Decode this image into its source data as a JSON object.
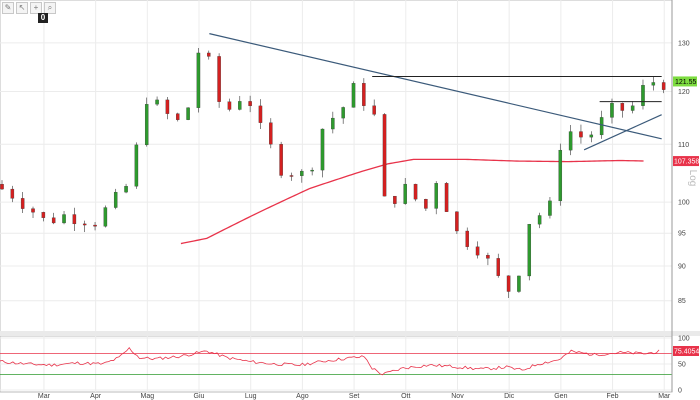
{
  "toolbar": {
    "icons": [
      "pencil-icon",
      "cursor-icon",
      "crosshair-icon",
      "zoom-icon"
    ],
    "badge": "0"
  },
  "chart_data": [
    {
      "type": "candlestick",
      "title": "",
      "scale": "log",
      "scale_label": "Log",
      "y_ticks": [
        85,
        90,
        95,
        100,
        110,
        120,
        130
      ],
      "ylim": [
        81,
        135
      ],
      "x_ticks": [
        "Mar",
        "Apr",
        "Mag",
        "Giu",
        "Lug",
        "Ago",
        "Set",
        "Ott",
        "Nov",
        "Dic",
        "Gen",
        "Feb",
        "Mar"
      ],
      "grid": true,
      "colors": {
        "up": "#2e9a2e",
        "down": "#d42020",
        "ma": "#e8334a",
        "trendline": "#3b5a7a",
        "resistance": "#222222",
        "price_tag": "#7ddc40",
        "ma_tag": "#e8334a"
      },
      "moving_average": {
        "value_label": "107.3580",
        "points": [
          [
            3.5,
            93.4
          ],
          [
            4,
            94.2
          ],
          [
            5,
            98.3
          ],
          [
            6,
            102.3
          ],
          [
            7,
            105.2
          ],
          [
            7.5,
            106.5
          ],
          [
            8,
            107.3
          ],
          [
            9,
            107.3
          ],
          [
            10,
            107.0
          ],
          [
            11,
            106.9
          ],
          [
            12,
            107.1
          ],
          [
            12.5,
            107.0
          ]
        ]
      },
      "price": {
        "last_label": "121.55",
        "keypoints": [
          [
            0,
            103
          ],
          [
            0.5,
            101
          ],
          [
            1,
            97
          ],
          [
            1.5,
            98
          ],
          [
            2,
            97
          ],
          [
            2.5,
            101
          ],
          [
            2.7,
            104
          ],
          [
            3,
            119
          ],
          [
            3.3,
            116
          ],
          [
            3.6,
            114
          ],
          [
            3.8,
            117
          ],
          [
            4.05,
            131
          ],
          [
            4.4,
            118
          ],
          [
            4.7,
            116
          ],
          [
            4.9,
            122
          ],
          [
            5.1,
            114
          ],
          [
            5.6,
            106
          ],
          [
            5.9,
            105
          ],
          [
            6.1,
            104
          ],
          [
            6.4,
            113
          ],
          [
            6.8,
            117
          ],
          [
            7.05,
            121
          ],
          [
            7.4,
            115
          ],
          [
            7.6,
            100
          ],
          [
            8,
            102
          ],
          [
            8.4,
            99
          ],
          [
            8.6,
            104
          ],
          [
            9,
            95
          ],
          [
            9.4,
            93
          ],
          [
            9.8,
            88
          ],
          [
            10.1,
            86
          ],
          [
            10.4,
            97
          ],
          [
            10.8,
            99
          ],
          [
            11.05,
            113
          ],
          [
            11.5,
            111
          ],
          [
            12,
            116
          ],
          [
            12.4,
            117
          ],
          [
            12.7,
            122
          ]
        ]
      },
      "trendlines": [
        {
          "from": [
            4.05,
            132
          ],
          "to": [
            12.8,
            111
          ]
        },
        {
          "from": [
            11.3,
            109
          ],
          "to": [
            12.8,
            115.5
          ]
        }
      ],
      "horizontal_lines": [
        {
          "y": 123,
          "from": 7.2,
          "to": 12.8
        },
        {
          "y": 118,
          "from": 11.6,
          "to": 12.8
        }
      ]
    },
    {
      "type": "line",
      "name_label": "",
      "y_ticks": [
        0,
        50,
        100
      ],
      "ylim": [
        0,
        100
      ],
      "levels": [
        70,
        30
      ],
      "value_label": "75.4054",
      "line_color": "#e8334a",
      "keypoints": [
        [
          0,
          55
        ],
        [
          0.5,
          50
        ],
        [
          1,
          48
        ],
        [
          1.5,
          52
        ],
        [
          2,
          50
        ],
        [
          2.3,
          62
        ],
        [
          2.5,
          80
        ],
        [
          2.7,
          62
        ],
        [
          3,
          60
        ],
        [
          3.5,
          65
        ],
        [
          4,
          75
        ],
        [
          4.4,
          62
        ],
        [
          4.8,
          55
        ],
        [
          5.3,
          50
        ],
        [
          5.8,
          48
        ],
        [
          6.3,
          56
        ],
        [
          6.8,
          62
        ],
        [
          7.05,
          64
        ],
        [
          7.2,
          42
        ],
        [
          7.4,
          30
        ],
        [
          7.8,
          42
        ],
        [
          8.3,
          48
        ],
        [
          8.8,
          45
        ],
        [
          9.3,
          40
        ],
        [
          9.8,
          44
        ],
        [
          10.1,
          38
        ],
        [
          10.4,
          50
        ],
        [
          10.8,
          58
        ],
        [
          11.05,
          74
        ],
        [
          11.5,
          68
        ],
        [
          12,
          72
        ],
        [
          12.5,
          70
        ],
        [
          12.8,
          75
        ]
      ]
    }
  ]
}
